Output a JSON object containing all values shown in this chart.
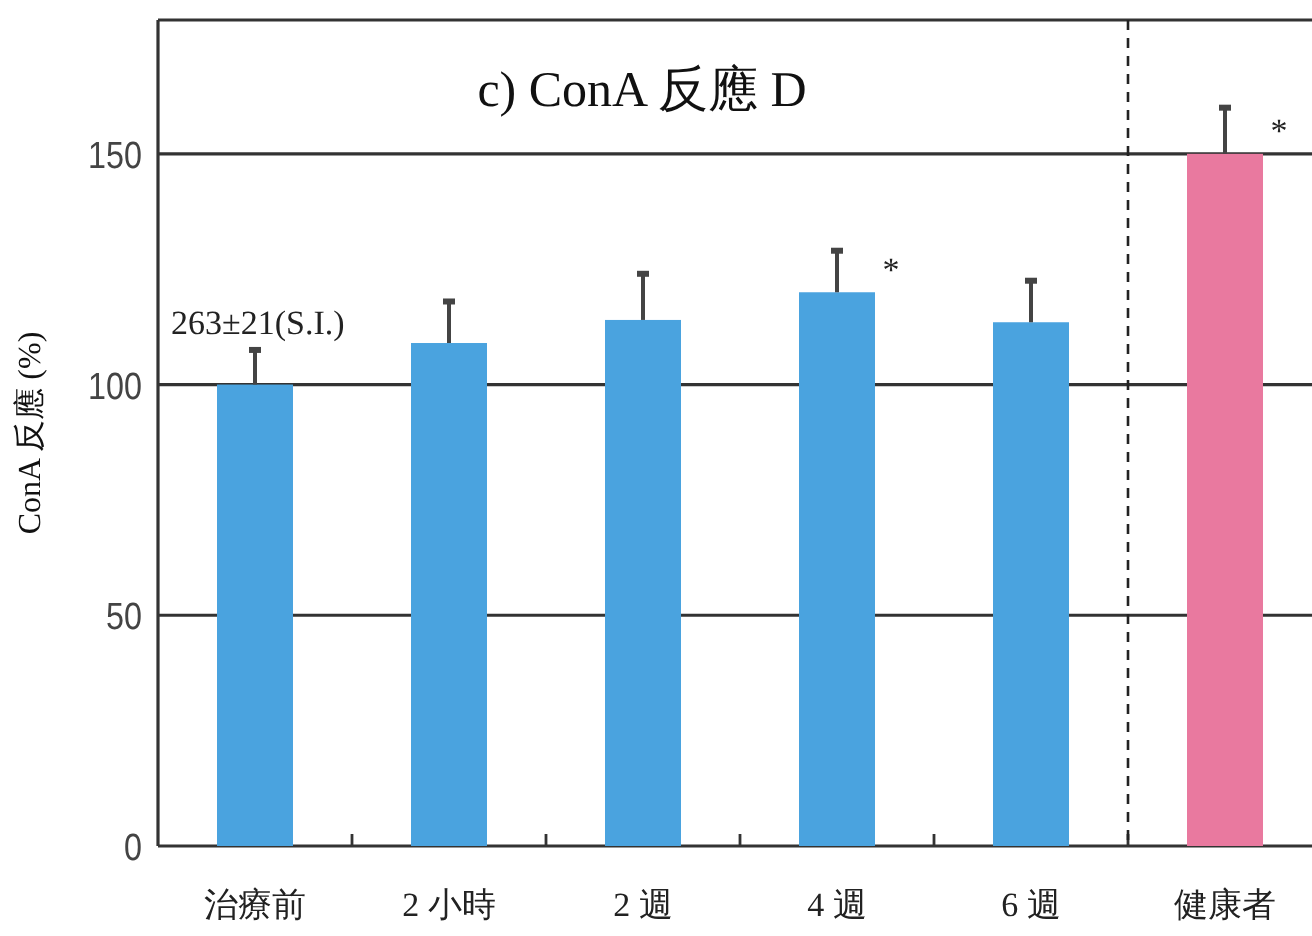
{
  "chart_data": {
    "type": "bar",
    "title": "c) ConA 反應 D",
    "ylabel": "ConA 反應 (%)",
    "categories": [
      "治療前",
      "2 小時",
      "2 週",
      "4 週",
      "6 週",
      "健康者"
    ],
    "values": [
      100,
      109,
      114,
      120,
      113.5,
      150
    ],
    "errors": [
      [
        100,
        107.5
      ],
      [
        109,
        118
      ],
      [
        114,
        124
      ],
      [
        120,
        129
      ],
      [
        113.5,
        122.5
      ],
      [
        150,
        160
      ]
    ],
    "colors": [
      "#4aa3df",
      "#4aa3df",
      "#4aa3df",
      "#4aa3df",
      "#4aa3df",
      "#e9799f"
    ],
    "ylim": [
      0,
      179
    ],
    "yticks": [
      0,
      50,
      100,
      150
    ],
    "grid": "y",
    "annotations": [
      "263±21(S.I.)",
      {
        "text": "*",
        "x": "4 週",
        "y": 126
      },
      {
        "text": "*",
        "x": "健康者",
        "y": 156
      }
    ]
  }
}
